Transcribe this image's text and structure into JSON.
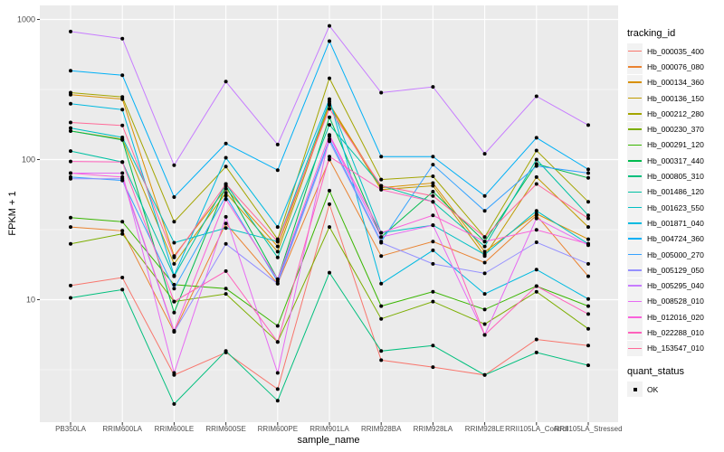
{
  "chart_data": {
    "type": "line",
    "title": "",
    "xlabel": "sample_name",
    "ylabel": "FPKM + 1",
    "y_scale": "log10",
    "y_ticks": [
      1000,
      100,
      10
    ],
    "y_tick_labels": [
      "1000",
      "100",
      "10"
    ],
    "y_minor_ticks": [
      316.2,
      31.62,
      3.162
    ],
    "ylim": [
      1.34,
      1260
    ],
    "grid": "on",
    "legend_position": "right",
    "categories": [
      "PB350LA",
      "RRIM600LA",
      "RRIM600LE",
      "RRIM600SE",
      "RRIM600PE",
      "RRIM901LA",
      "RRIM928BA",
      "RRIM928LA",
      "RRIM928LE",
      "RRII105LA_Control",
      "RRII105LA_Stressed"
    ],
    "series": [
      {
        "name": "Hb_000035_400",
        "color": "#F8766D",
        "values": [
          12.6,
          14.4,
          2.9,
          4.2,
          2.3,
          48,
          3.7,
          3.3,
          2.9,
          5.2,
          4.7
        ]
      },
      {
        "name": "Hb_000076_080",
        "color": "#EA8331",
        "values": [
          33,
          31,
          5.9,
          35,
          13,
          100,
          20.5,
          26,
          18.4,
          40,
          14.7
        ]
      },
      {
        "name": "Hb_000134_360",
        "color": "#D89000",
        "values": [
          290,
          270,
          20.5,
          62,
          24,
          250,
          63,
          68,
          22,
          41,
          27
        ]
      },
      {
        "name": "Hb_000136_150",
        "color": "#C09B00",
        "values": [
          160,
          140,
          18,
          58,
          22,
          245,
          61,
          65,
          20.5,
          75,
          33
        ]
      },
      {
        "name": "Hb_000212_280",
        "color": "#A3A500",
        "values": [
          300,
          280,
          36,
          89,
          27,
          380,
          72,
          76,
          28,
          116,
          50
        ]
      },
      {
        "name": "Hb_000230_370",
        "color": "#7CAE00",
        "values": [
          25,
          29.5,
          9.7,
          11,
          5,
          33,
          7.3,
          9.7,
          6.7,
          11.4,
          6.2
        ]
      },
      {
        "name": "Hb_000291_120",
        "color": "#39B600",
        "values": [
          38.5,
          36,
          12.8,
          12,
          6.5,
          60,
          9,
          11.4,
          8.5,
          12.5,
          9
        ]
      },
      {
        "name": "Hb_000317_440",
        "color": "#00BB4E",
        "values": [
          160,
          138,
          8.1,
          65,
          14,
          200,
          28,
          59,
          26,
          93,
          74
        ]
      },
      {
        "name": "Hb_000805_310",
        "color": "#00BF7D",
        "values": [
          10.3,
          11.8,
          1.8,
          4.3,
          1.9,
          15.6,
          4.3,
          4.7,
          2.9,
          4.2,
          3.4
        ]
      },
      {
        "name": "Hb_001486_120",
        "color": "#00C1A3",
        "values": [
          115,
          96,
          14.7,
          67,
          20,
          177,
          65,
          50,
          24,
          100,
          40
        ]
      },
      {
        "name": "Hb_001623_550",
        "color": "#00BFC4",
        "values": [
          168,
          144,
          25.5,
          32.5,
          26,
          260,
          30,
          34,
          21,
          43,
          25
        ]
      },
      {
        "name": "Hb_001871_040",
        "color": "#00BAE0",
        "values": [
          250,
          227,
          14.9,
          103,
          33,
          270,
          13,
          22.5,
          11,
          16.4,
          10.1
        ]
      },
      {
        "name": "Hb_004724_360",
        "color": "#00B0F6",
        "values": [
          430,
          400,
          54,
          130,
          84,
          700,
          105,
          105,
          55,
          143,
          85
        ]
      },
      {
        "name": "Hb_005000_270",
        "color": "#35A2FF",
        "values": [
          75,
          71,
          12,
          55,
          13.5,
          140,
          26,
          92,
          43,
          90,
          80
        ]
      },
      {
        "name": "Hb_005129_050",
        "color": "#9590FF",
        "values": [
          73,
          73,
          5.9,
          25,
          13,
          135,
          25.5,
          18,
          15.4,
          25.7,
          18
        ]
      },
      {
        "name": "Hb_005295_040",
        "color": "#C77CFF",
        "values": [
          820,
          730,
          91,
          360,
          128,
          900,
          300,
          330,
          110,
          283,
          176
        ]
      },
      {
        "name": "Hb_008528_010",
        "color": "#E76BF3",
        "values": [
          80,
          80,
          3,
          39,
          3,
          147,
          28,
          34,
          5.6,
          38,
          24.5
        ]
      },
      {
        "name": "Hb_012016_020",
        "color": "#FA62DB",
        "values": [
          80,
          75,
          6,
          52,
          14,
          150,
          30,
          40,
          26,
          31.5,
          25
        ]
      },
      {
        "name": "Hb_022288_010",
        "color": "#FF62BC",
        "values": [
          97,
          96,
          9.7,
          16,
          5,
          105,
          61,
          50,
          5.6,
          12.5,
          7.9
        ]
      },
      {
        "name": "Hb_153547_010",
        "color": "#FF6A98",
        "values": [
          184,
          175,
          20,
          67,
          26,
          230,
          65,
          55,
          28,
          67,
          38
        ]
      }
    ],
    "legend": {
      "tracking_title": "tracking_id",
      "quant_title": "quant_status",
      "quant_items": [
        {
          "label": "OK",
          "marker": "black-square"
        }
      ]
    },
    "layout": {
      "panel_bg": "#EBEBEB",
      "grid_color": "#FFFFFF",
      "point_color": "#000000",
      "tick_label_color": "#4D4D4D",
      "tick_mark_color": "#333333",
      "legend_key_bg": "#F2F2F2"
    }
  }
}
